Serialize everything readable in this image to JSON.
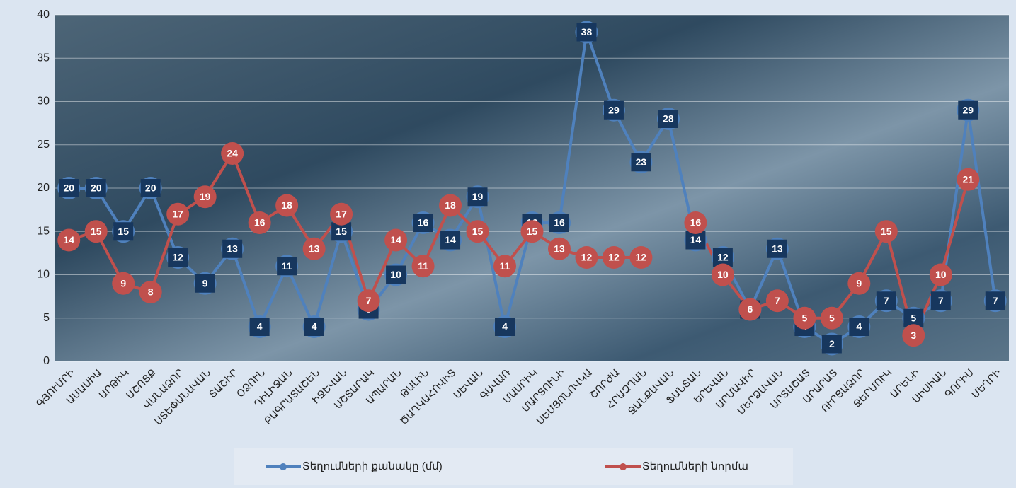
{
  "chart_data": {
    "type": "line",
    "categories": [
      "ԳՅՈՒՄՐԻ",
      "ԱՄԱՍԻԱ",
      "ԱՐԹԻԿ",
      "ԱՇՈՑՔ",
      "ՎԱՆԱՁՈՐ",
      "ՍՏԵՓԱՆԱՎԱՆ",
      "ՏԱՇԻՐ",
      "ՕՁՈՒՆ",
      "ԴԻԼԻՋԱՆ",
      "ԲԱԳՐԱՏԱՇԵՆ",
      "ԻՋԵՎԱՆ",
      "ԱՇՏԱՐԱԿ",
      "ԱՊԱՐԱՆ",
      "ԹԱԼԻՆ",
      "ԾԱՂԿԱՀՈՎԻՏ",
      "ՍԵՎԱՆ",
      "ԳԱՎԱՌ",
      "ՄԱՍՐԻԿ",
      "ՄԱՐՏՈՒՆԻ",
      "ՍԵՄՅՈՆՈՎԿԱ",
      "ՇՈՐԺԱ",
      "ՀՐԱԶԴԱՆ",
      "ՋԱՆՔԱՎԱՆ",
      "ՖԱՆՏԱՆ",
      "ԵՐԵՎԱՆ",
      "ԱՐՄԱՎԻՐ",
      "ՄԵՐՁԱՎԱՆ",
      "ԱՐՏԱՇԱՏ",
      "ԱՐԱՐԱՏ",
      "ՈՒՐՑԱՁՈՐ",
      "ՋԵՐՄՈՒԿ",
      "ԱՐԵՆԻ",
      "ՍԻՍԻԱՆ",
      "ԳՈՐԻՍ",
      "ՄԵՂՐԻ"
    ],
    "series": [
      {
        "name": "Տեղումների քանակը (մմ)",
        "color": "#4f81bd",
        "values": [
          20,
          20,
          15,
          20,
          12,
          9,
          13,
          4,
          11,
          4,
          15,
          6,
          10,
          16,
          14,
          19,
          4,
          16,
          16,
          38,
          29,
          23,
          28,
          14,
          12,
          6,
          13,
          4,
          2,
          4,
          7,
          5,
          7,
          29,
          7
        ]
      },
      {
        "name": "Տեղումների նորմա",
        "color": "#c0504d",
        "values": [
          14,
          15,
          9,
          8,
          17,
          19,
          24,
          16,
          18,
          13,
          17,
          7,
          14,
          11,
          18,
          15,
          11,
          15,
          13,
          12,
          12,
          12,
          null,
          16,
          10,
          6,
          7,
          5,
          5,
          9,
          15,
          3,
          10,
          21,
          null
        ]
      }
    ],
    "ylim": [
      0,
      40
    ],
    "yticks": [
      0,
      5,
      10,
      15,
      20,
      25,
      30,
      35,
      40
    ],
    "grid": true
  }
}
